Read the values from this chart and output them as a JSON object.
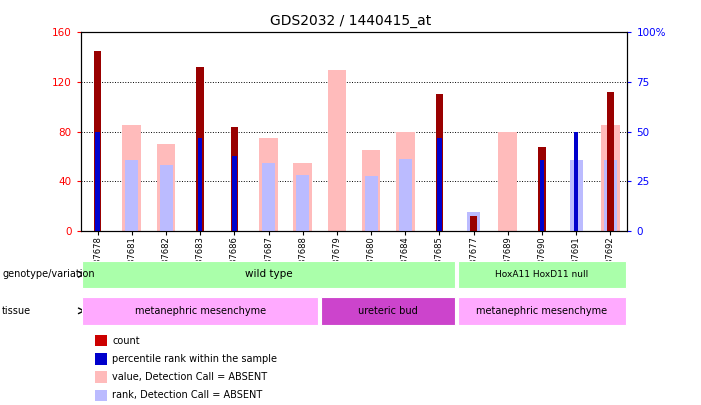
{
  "title": "GDS2032 / 1440415_at",
  "samples": [
    "GSM87678",
    "GSM87681",
    "GSM87682",
    "GSM87683",
    "GSM87686",
    "GSM87687",
    "GSM87688",
    "GSM87679",
    "GSM87680",
    "GSM87684",
    "GSM87685",
    "GSM87677",
    "GSM87689",
    "GSM87690",
    "GSM87691",
    "GSM87692"
  ],
  "count": [
    145,
    0,
    0,
    132,
    84,
    0,
    0,
    0,
    0,
    0,
    110,
    12,
    0,
    68,
    0,
    112
  ],
  "percentile": [
    80,
    0,
    0,
    75,
    60,
    0,
    0,
    0,
    0,
    0,
    75,
    0,
    0,
    57,
    80,
    0
  ],
  "value_absent": [
    0,
    85,
    70,
    0,
    0,
    75,
    55,
    130,
    65,
    80,
    0,
    0,
    80,
    0,
    0,
    85
  ],
  "rank_absent": [
    0,
    57,
    53,
    0,
    0,
    55,
    45,
    0,
    44,
    58,
    0,
    15,
    0,
    0,
    57,
    57
  ],
  "ylim_left": [
    0,
    160
  ],
  "ylim_right": [
    0,
    100
  ],
  "yticks_left": [
    0,
    40,
    80,
    120,
    160
  ],
  "yticks_right": [
    0,
    25,
    50,
    75,
    100
  ],
  "color_count": "#990000",
  "color_percentile": "#0000cc",
  "color_value_absent": "#ffbbbb",
  "color_rank_absent": "#bbbbff",
  "color_genotype_bg": "#aaffaa",
  "color_tissue_light": "#ffaaff",
  "color_tissue_dark": "#cc44cc",
  "genotype_splits": [
    11
  ],
  "genotype_labels": [
    "wild type",
    "HoxA11 HoxD11 null"
  ],
  "tissue_splits": [
    7,
    11
  ],
  "tissue_labels": [
    "metanephric mesenchyme",
    "ureteric bud",
    "metanephric mesenchyme"
  ],
  "legend_items": [
    {
      "color": "#cc0000",
      "label": "count"
    },
    {
      "color": "#0000cc",
      "label": "percentile rank within the sample"
    },
    {
      "color": "#ffbbbb",
      "label": "value, Detection Call = ABSENT"
    },
    {
      "color": "#bbbbff",
      "label": "rank, Detection Call = ABSENT"
    }
  ]
}
